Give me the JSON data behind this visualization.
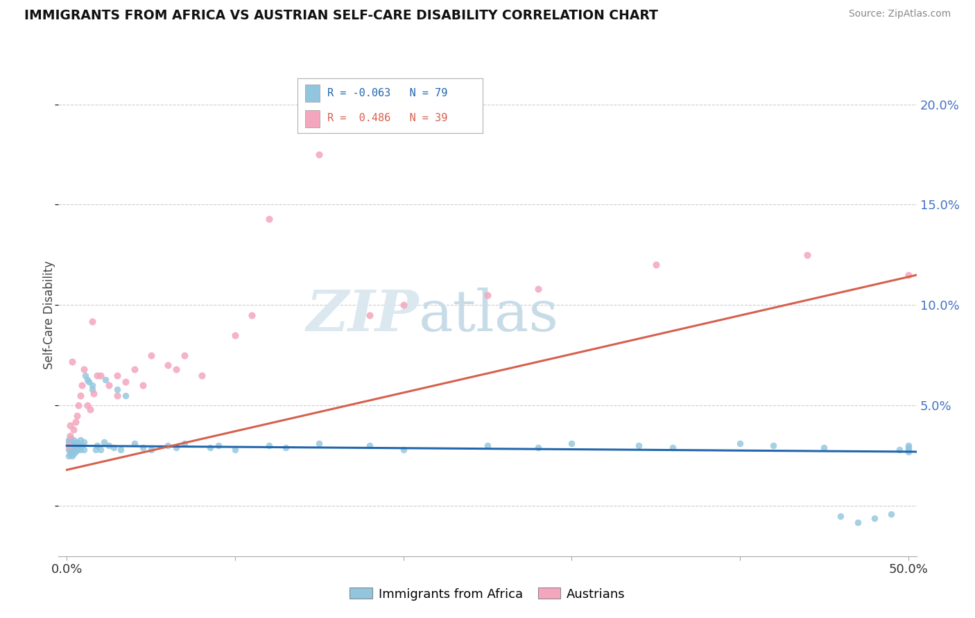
{
  "title": "IMMIGRANTS FROM AFRICA VS AUSTRIAN SELF-CARE DISABILITY CORRELATION CHART",
  "source": "Source: ZipAtlas.com",
  "ylabel": "Self-Care Disability",
  "xlim": [
    -0.005,
    0.505
  ],
  "ylim": [
    -0.025,
    0.215
  ],
  "yticks": [
    0.0,
    0.05,
    0.1,
    0.15,
    0.2
  ],
  "ytick_labels": [
    "",
    "5.0%",
    "10.0%",
    "15.0%",
    "20.0%"
  ],
  "xticks": [
    0.0,
    0.1,
    0.2,
    0.3,
    0.4,
    0.5
  ],
  "xtick_labels": [
    "0.0%",
    "",
    "",
    "",
    "",
    "50.0%"
  ],
  "legend_blue_r": "-0.063",
  "legend_blue_n": "79",
  "legend_pink_r": "0.486",
  "legend_pink_n": "39",
  "blue_color": "#92c5de",
  "pink_color": "#f4a6be",
  "blue_line_color": "#2166ac",
  "pink_line_color": "#d6604d",
  "blue_trendline_x": [
    0.0,
    0.505
  ],
  "blue_trendline_y": [
    0.03,
    0.027
  ],
  "pink_trendline_x": [
    0.0,
    0.505
  ],
  "pink_trendline_y": [
    0.018,
    0.115
  ],
  "blue_scatter_x": [
    0.001,
    0.001,
    0.001,
    0.001,
    0.001,
    0.002,
    0.002,
    0.002,
    0.002,
    0.002,
    0.002,
    0.003,
    0.003,
    0.003,
    0.003,
    0.003,
    0.004,
    0.004,
    0.004,
    0.004,
    0.005,
    0.005,
    0.005,
    0.006,
    0.006,
    0.006,
    0.007,
    0.007,
    0.008,
    0.008,
    0.009,
    0.01,
    0.01,
    0.011,
    0.012,
    0.013,
    0.015,
    0.015,
    0.017,
    0.018,
    0.02,
    0.022,
    0.023,
    0.025,
    0.028,
    0.03,
    0.032,
    0.035,
    0.04,
    0.045,
    0.05,
    0.06,
    0.065,
    0.07,
    0.085,
    0.09,
    0.1,
    0.12,
    0.13,
    0.15,
    0.18,
    0.2,
    0.25,
    0.28,
    0.3,
    0.34,
    0.36,
    0.4,
    0.42,
    0.45,
    0.46,
    0.47,
    0.48,
    0.49,
    0.495,
    0.5,
    0.5,
    0.5,
    0.5
  ],
  "blue_scatter_y": [
    0.03,
    0.028,
    0.032,
    0.025,
    0.033,
    0.028,
    0.031,
    0.026,
    0.034,
    0.029,
    0.03,
    0.027,
    0.032,
    0.029,
    0.025,
    0.031,
    0.028,
    0.03,
    0.026,
    0.033,
    0.029,
    0.031,
    0.027,
    0.03,
    0.028,
    0.032,
    0.029,
    0.031,
    0.028,
    0.033,
    0.03,
    0.028,
    0.032,
    0.065,
    0.063,
    0.062,
    0.06,
    0.058,
    0.028,
    0.03,
    0.028,
    0.032,
    0.063,
    0.03,
    0.029,
    0.058,
    0.028,
    0.055,
    0.031,
    0.029,
    0.028,
    0.03,
    0.029,
    0.031,
    0.029,
    0.03,
    0.028,
    0.03,
    0.029,
    0.031,
    0.03,
    0.028,
    0.03,
    0.029,
    0.031,
    0.03,
    0.029,
    0.031,
    0.03,
    0.029,
    -0.005,
    -0.008,
    -0.006,
    -0.004,
    0.028,
    0.03,
    0.028,
    0.029,
    0.027
  ],
  "pink_scatter_x": [
    0.001,
    0.002,
    0.002,
    0.003,
    0.004,
    0.005,
    0.006,
    0.007,
    0.008,
    0.009,
    0.01,
    0.012,
    0.014,
    0.015,
    0.016,
    0.018,
    0.02,
    0.025,
    0.03,
    0.03,
    0.035,
    0.04,
    0.045,
    0.05,
    0.06,
    0.065,
    0.07,
    0.08,
    0.1,
    0.11,
    0.12,
    0.15,
    0.18,
    0.2,
    0.25,
    0.28,
    0.35,
    0.44,
    0.5
  ],
  "pink_scatter_y": [
    0.03,
    0.035,
    0.04,
    0.072,
    0.038,
    0.042,
    0.045,
    0.05,
    0.055,
    0.06,
    0.068,
    0.05,
    0.048,
    0.092,
    0.056,
    0.065,
    0.065,
    0.06,
    0.065,
    0.055,
    0.062,
    0.068,
    0.06,
    0.075,
    0.07,
    0.068,
    0.075,
    0.065,
    0.085,
    0.095,
    0.143,
    0.175,
    0.095,
    0.1,
    0.105,
    0.108,
    0.12,
    0.125,
    0.115
  ]
}
